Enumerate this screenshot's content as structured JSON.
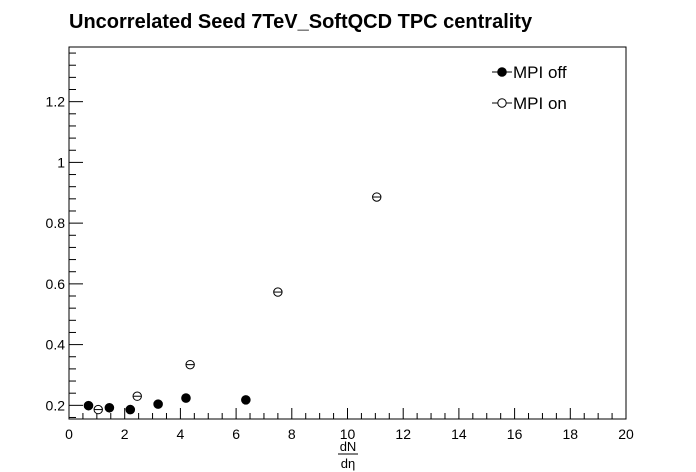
{
  "chart_data": {
    "type": "scatter",
    "title": "Uncorrelated Seed 7TeV_SoftQCD TPC centrality",
    "xlabel_num": "dN",
    "xlabel_den": "dη",
    "ylabel": "",
    "xlim": [
      0,
      20
    ],
    "ylim": [
      0.155,
      1.38
    ],
    "x_major_ticks": [
      0,
      2,
      4,
      6,
      8,
      10,
      12,
      14,
      16,
      18,
      20
    ],
    "x_tick_labels": [
      "0",
      "2",
      "4",
      "6",
      "8",
      "10",
      "12",
      "14",
      "16",
      "18",
      "20"
    ],
    "y_major_ticks": [
      0.2,
      0.4,
      0.6,
      0.8,
      1.0,
      1.2
    ],
    "y_tick_labels": [
      "0.2",
      "0.4",
      "0.6",
      "0.8",
      "1",
      "1.2"
    ],
    "grid": false,
    "legend_position": "top-right",
    "series": [
      {
        "name": "MPI off",
        "marker": "filled-circle",
        "color": "#000000",
        "x": [
          0.7,
          1.45,
          2.2,
          3.2,
          4.2,
          6.35
        ],
        "y": [
          0.199,
          0.192,
          0.186,
          0.204,
          0.224,
          0.218
        ]
      },
      {
        "name": "MPI on",
        "marker": "open-circle",
        "color": "#000000",
        "x": [
          1.05,
          2.45,
          4.35,
          7.5,
          11.05
        ],
        "y": [
          0.186,
          0.23,
          0.334,
          0.573,
          0.886
        ]
      }
    ]
  }
}
